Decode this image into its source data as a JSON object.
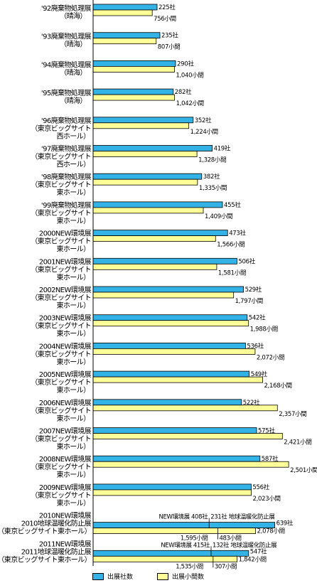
{
  "chart_data": {
    "type": "bar",
    "orientation": "horizontal",
    "grid": false,
    "legend_position": "bottom",
    "colors": {
      "companies": "#33b2e5",
      "booths": "#ffff99",
      "axis": "#000000"
    },
    "categories": [
      [
        "'92廃棄物処理展",
        "（晴海）"
      ],
      [
        "'93廃棄物処理展",
        "（晴海）"
      ],
      [
        "'94廃棄物処理展",
        "（晴海）"
      ],
      [
        "'95廃棄物処理展",
        "（晴海）"
      ],
      [
        "'96廃棄物処理展",
        "（東京ビッグサイト",
        "西ホール）"
      ],
      [
        "'97廃棄物処理展",
        "（東京ビッグサイト",
        "西ホール）"
      ],
      [
        "'98廃棄物処理展",
        "（東京ビッグサイト",
        "東ホール）"
      ],
      [
        "'99廃棄物処理展",
        "（東京ビッグサイト",
        "東ホール）"
      ],
      [
        "2000NEW環境展",
        "（東京ビッグサイト",
        "東ホール）"
      ],
      [
        "2001NEW環境展",
        "（東京ビッグサイト",
        "東ホール）"
      ],
      [
        "2002NEW環境展",
        "（東京ビッグサイト",
        "東ホール）"
      ],
      [
        "2003NEW環境展",
        "（東京ビッグサイト",
        "東ホール）"
      ],
      [
        "2004NEW環境展",
        "（東京ビッグサイト",
        "東ホール）"
      ],
      [
        "2005NEW環境展",
        "（東京ビッグサイト",
        "東ホール）"
      ],
      [
        "2006NEW環境展",
        "（東京ビッグサイト",
        "東ホール）"
      ],
      [
        "2007NEW環境展",
        "（東京ビッグサイト",
        "東ホール）"
      ],
      [
        "2008NEW環境展",
        "（東京ビッグサイト",
        "東ホール）"
      ],
      [
        "2009NEW環境展",
        "（東京ビッグサイト",
        "東ホール）"
      ],
      [
        "2010NEW環境展",
        "2010地球温暖化防止展",
        "（東京ビッグサイト東ホール）"
      ],
      [
        "2011NEW環境展",
        "2011地球温暖化防止展",
        "（東京ビッグサイト東ホール）"
      ]
    ],
    "series": [
      {
        "name": "出展社数",
        "values": [
          225,
          235,
          290,
          282,
          352,
          419,
          382,
          455,
          473,
          506,
          529,
          542,
          536,
          549,
          522,
          575,
          587,
          556,
          639,
          547
        ],
        "labels": [
          "225社",
          "235社",
          "290社",
          "282社",
          "352社",
          "419社",
          "382社",
          "455社",
          "473社",
          "506社",
          "529社",
          "542社",
          "536社",
          "549社",
          "522社",
          "575社",
          "587社",
          "556社",
          "639社",
          "547社"
        ]
      },
      {
        "name": "出展小間数",
        "values": [
          756,
          807,
          1040,
          1042,
          1224,
          1328,
          1335,
          1409,
          1566,
          1581,
          1797,
          1988,
          2072,
          2168,
          2357,
          2421,
          2501,
          2023,
          2078,
          1842
        ],
        "labels": [
          "756小間",
          "807小間",
          "1,040小間",
          "1,042小間",
          "1,224小間",
          "1,328小間",
          "1,335小間",
          "1,409小間",
          "1,566小間",
          "1,581小間",
          "1,797小間",
          "1,988小間",
          "2,072小間",
          "2,168小間",
          "2,357小間",
          "2,421小間",
          "2,501小間",
          "2,023小間",
          "2,078小間",
          "1,842小間"
        ]
      }
    ],
    "breakdowns": [
      {
        "category_index": 18,
        "companies": [
          {
            "name": "NEW環境展",
            "value": 408,
            "label": "408社"
          },
          {
            "name": "地球温暖化防止展",
            "value": 231,
            "label": "231社"
          }
        ],
        "booths": [
          {
            "value": 1595,
            "label": "1,595小間"
          },
          {
            "value": 483,
            "label": "483小間"
          }
        ]
      },
      {
        "category_index": 19,
        "companies": [
          {
            "name": "NEW環境展",
            "value": 415,
            "label": "415社"
          },
          {
            "name": "地球温暖化防止展",
            "value": 132,
            "label": "132社"
          }
        ],
        "booths": [
          {
            "value": 1535,
            "label": "1,535小間"
          },
          {
            "value": 307,
            "label": "307小間"
          }
        ]
      }
    ]
  },
  "legend": {
    "companies": "出展社数",
    "booths": "出展小間数"
  }
}
